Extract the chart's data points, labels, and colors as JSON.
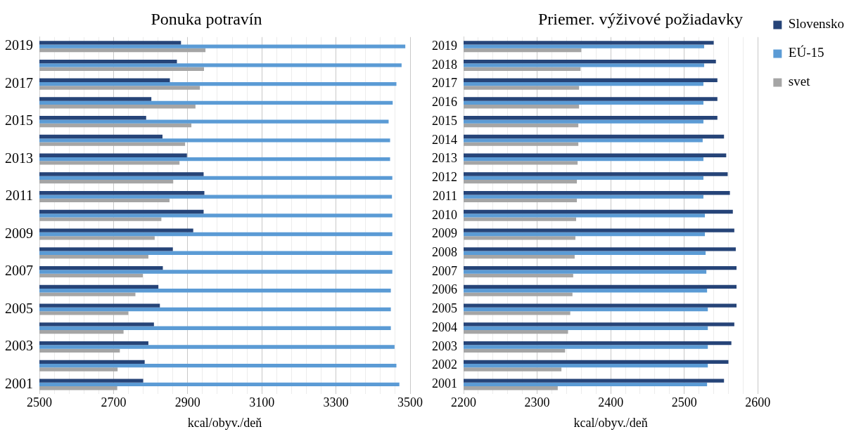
{
  "chart_data": [
    {
      "type": "bar",
      "orientation": "horizontal",
      "title": "Ponuka potravín",
      "xlabel": "kcal/obyv./deň",
      "categories": [
        "2019",
        null,
        "2017",
        null,
        "2015",
        null,
        "2013",
        null,
        "2011",
        null,
        "2009",
        null,
        "2007",
        null,
        "2005",
        null,
        "2003",
        null,
        "2001"
      ],
      "series": [
        {
          "color": "#264478",
          "values": [
            2882,
            2871,
            2852,
            2802,
            2788,
            2832,
            2898,
            2943,
            2945,
            2943,
            2915,
            2860,
            2833,
            2821,
            2825,
            2809,
            2794,
            2784,
            2780
          ]
        },
        {
          "color": "#5b9bd5",
          "values": [
            3487,
            3477,
            3463,
            3453,
            3442,
            3446,
            3446,
            3452,
            3451,
            3452,
            3452,
            3452,
            3452,
            3448,
            3448,
            3448,
            3458,
            3463,
            3471
          ]
        },
        {
          "color": "#a5a5a5",
          "values": [
            2948,
            2944,
            2933,
            2921,
            2910,
            2893,
            2878,
            2861,
            2851,
            2829,
            2811,
            2794,
            2779,
            2759,
            2740,
            2727,
            2717,
            2711,
            2710
          ]
        }
      ],
      "xlim": [
        2500,
        3500
      ],
      "xticks": [
        2500,
        {
          "value": 2540,
          "label": null
        },
        {
          "value": 2580,
          "label": null
        },
        {
          "value": 2620,
          "label": null
        },
        {
          "value": 2660,
          "label": null
        },
        2700,
        {
          "value": 2740,
          "label": null
        },
        {
          "value": 2780,
          "label": null
        },
        {
          "value": 2820,
          "label": null
        },
        {
          "value": 2860,
          "label": null
        },
        2900,
        {
          "value": 2940,
          "label": null
        },
        {
          "value": 2980,
          "label": null
        },
        {
          "value": 3020,
          "label": null
        },
        {
          "value": 3060,
          "label": null
        },
        3100,
        {
          "value": 3140,
          "label": null
        },
        {
          "value": 3180,
          "label": null
        },
        {
          "value": 3220,
          "label": null
        },
        {
          "value": 3260,
          "label": null
        },
        3300,
        {
          "value": 3340,
          "label": null
        },
        {
          "value": 3380,
          "label": null
        },
        {
          "value": 3420,
          "label": null
        },
        {
          "value": 3460,
          "label": null
        },
        3500
      ],
      "grid": "x",
      "legend": false
    },
    {
      "type": "bar",
      "orientation": "horizontal",
      "title": "Priemer. výživové požiadavky",
      "xlabel": "kcal/obyv./deň",
      "categories": [
        "2019",
        "2018",
        "2017",
        "2016",
        "2015",
        "2014",
        "2013",
        "2012",
        "2011",
        "2010",
        "2009",
        "2008",
        "2007",
        "2006",
        "2005",
        "2004",
        "2003",
        "2002",
        "2001"
      ],
      "series": [
        {
          "name": "Slovensko",
          "color": "#264478",
          "values": [
            2540,
            2543,
            2545,
            2545,
            2545,
            2554,
            2557,
            2559,
            2562,
            2566,
            2568,
            2570,
            2571,
            2571,
            2571,
            2568,
            2564,
            2560,
            2554
          ]
        },
        {
          "name": "EÚ-15",
          "color": "#5b9bd5",
          "values": [
            2527,
            2527,
            2526,
            2526,
            2526,
            2525,
            2526,
            2526,
            2526,
            2528,
            2528,
            2529,
            2530,
            2531,
            2532,
            2532,
            2532,
            2532,
            2531
          ]
        },
        {
          "name": "svet",
          "color": "#a5a5a5",
          "values": [
            2360,
            2359,
            2357,
            2357,
            2356,
            2356,
            2355,
            2354,
            2354,
            2353,
            2352,
            2351,
            2349,
            2348,
            2345,
            2342,
            2338,
            2333,
            2328
          ]
        }
      ],
      "xlim": [
        2200,
        2600
      ],
      "xticks": [
        2200,
        {
          "value": 2220,
          "label": null
        },
        {
          "value": 2240,
          "label": null
        },
        {
          "value": 2260,
          "label": null
        },
        {
          "value": 2280,
          "label": null
        },
        2300,
        {
          "value": 2320,
          "label": null
        },
        {
          "value": 2340,
          "label": null
        },
        {
          "value": 2360,
          "label": null
        },
        {
          "value": 2380,
          "label": null
        },
        2400,
        {
          "value": 2420,
          "label": null
        },
        {
          "value": 2440,
          "label": null
        },
        {
          "value": 2460,
          "label": null
        },
        {
          "value": 2480,
          "label": null
        },
        2500,
        {
          "value": 2520,
          "label": null
        },
        {
          "value": 2540,
          "label": null
        },
        {
          "value": 2560,
          "label": null
        },
        {
          "value": 2580,
          "label": null
        },
        2600
      ],
      "grid": "x",
      "legend": "top right"
    }
  ]
}
